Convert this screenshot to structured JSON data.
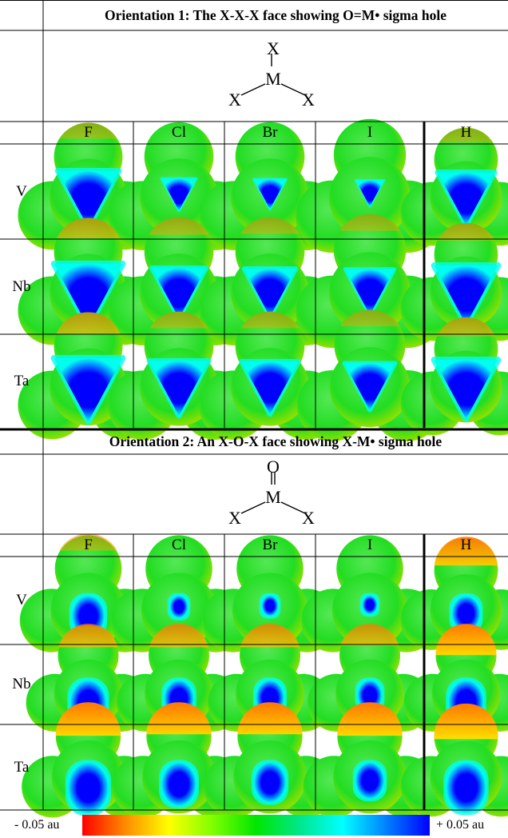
{
  "sections": [
    {
      "id": "orientation1",
      "title": "Orientation 1: The X-X-X face showing O=M• sigma hole",
      "structure_atoms": [
        "X",
        "M",
        "X",
        "X"
      ],
      "columns": [
        "F",
        "Cl",
        "Br",
        "I",
        "H"
      ],
      "rows": [
        "V",
        "Nb",
        "Ta"
      ],
      "maps": [
        [
          {
            "hole": 0.85,
            "top": 0.1
          },
          {
            "hole": 0.3,
            "top": 0.0
          },
          {
            "hole": 0.25,
            "top": 0.0
          },
          {
            "hole": 0.15,
            "top": 0.0
          },
          {
            "hole": 0.85,
            "top": 0.1
          }
        ],
        [
          {
            "hole": 1.0,
            "top": 0.25
          },
          {
            "hole": 0.7,
            "top": 0.15
          },
          {
            "hole": 0.65,
            "top": 0.12
          },
          {
            "hole": 0.55,
            "top": 0.1
          },
          {
            "hole": 1.0,
            "top": 0.2
          }
        ],
        [
          {
            "hole": 1.0,
            "top": 0.3
          },
          {
            "hole": 0.8,
            "top": 0.12
          },
          {
            "hole": 0.75,
            "top": 0.12
          },
          {
            "hole": 0.6,
            "top": 0.1
          },
          {
            "hole": 1.0,
            "top": 0.25
          }
        ]
      ]
    },
    {
      "id": "orientation2",
      "title": "Orientation 2: An X-O-X face showing X-M• sigma hole",
      "structure_atoms": [
        "O",
        "M",
        "X",
        "X"
      ],
      "columns": [
        "F",
        "Cl",
        "Br",
        "I",
        "H"
      ],
      "rows": [
        "V",
        "Nb",
        "Ta"
      ],
      "maps": [
        [
          {
            "hole": 0.7,
            "top": 0.15
          },
          {
            "hole": 0.2,
            "top": 0.05
          },
          {
            "hole": 0.15,
            "top": 0.05
          },
          {
            "hole": 0.1,
            "top": 0.05
          },
          {
            "hole": 0.6,
            "top": 0.6
          }
        ],
        [
          {
            "hole": 0.95,
            "top": 0.45
          },
          {
            "hole": 0.7,
            "top": 0.45
          },
          {
            "hole": 0.65,
            "top": 0.45
          },
          {
            "hole": 0.5,
            "top": 0.4
          },
          {
            "hole": 0.9,
            "top": 0.75
          }
        ],
        [
          {
            "hole": 1.0,
            "top": 0.75
          },
          {
            "hole": 0.8,
            "top": 0.7
          },
          {
            "hole": 0.7,
            "top": 0.7
          },
          {
            "hole": 0.6,
            "top": 0.75
          },
          {
            "hole": 1.0,
            "top": 0.85
          }
        ]
      ]
    }
  ],
  "colorbar": {
    "min_label": "- 0.05 au",
    "max_label": "+ 0.05 au",
    "colors": [
      "#ff0000",
      "#ff8c00",
      "#ffff00",
      "#7fff00",
      "#00e600",
      "#00e68c",
      "#00ffff",
      "#0080ff",
      "#0000ff"
    ]
  },
  "colors": {
    "hole": "#0000ff",
    "hole_edge": "#00a8ff",
    "rim": "#00ffee",
    "surface": "#22dd22",
    "surface_light": "#55e855",
    "surface_edge": "#8fe000",
    "cap": "#ff7700",
    "cap_light": "#ffdd00"
  }
}
